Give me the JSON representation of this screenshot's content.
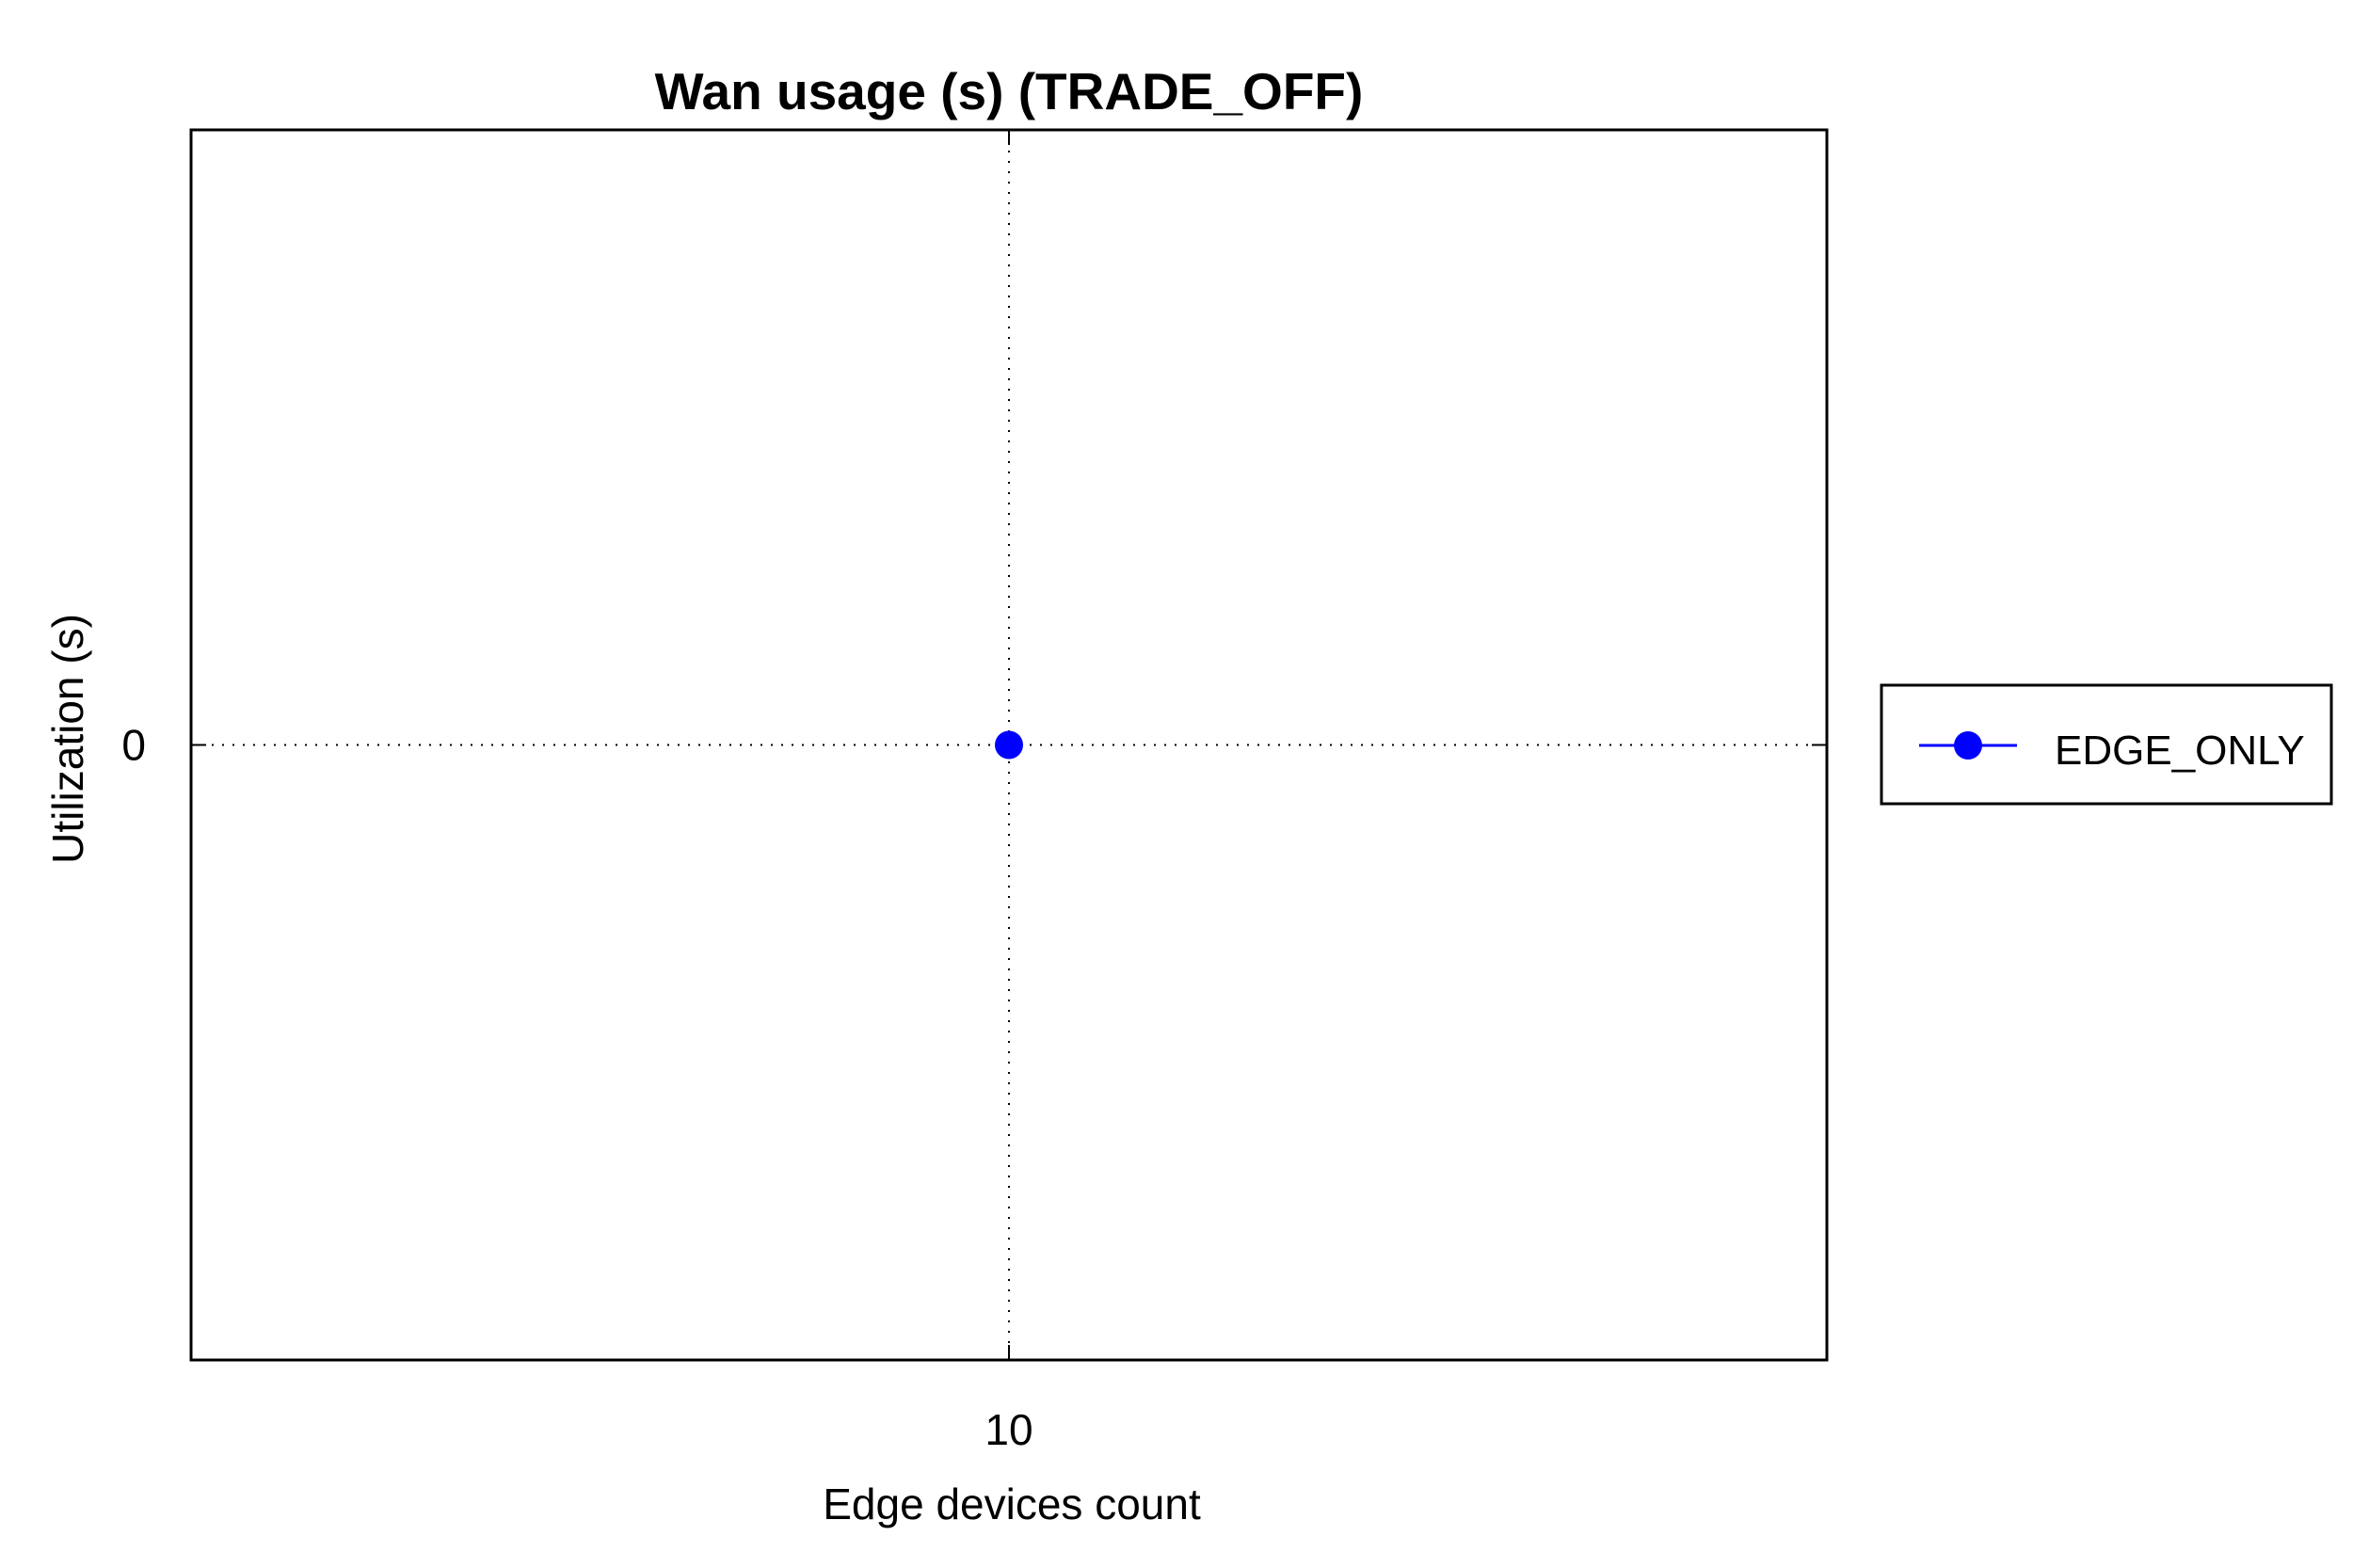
{
  "chart_data": {
    "type": "line",
    "title": "Wan usage (s) (TRADE_OFF)",
    "xlabel": "Edge devices count",
    "ylabel": "Utilization (s)",
    "x": [
      10
    ],
    "x_ticks": [
      "10"
    ],
    "y_ticks": [
      "0"
    ],
    "xlim": [
      9,
      11
    ],
    "ylim": [
      -1,
      1
    ],
    "grid": true,
    "legend_position": "outside-right",
    "series": [
      {
        "name": "EDGE_ONLY",
        "values": [
          0
        ],
        "color": "#0000ff",
        "marker": "circle"
      }
    ]
  }
}
